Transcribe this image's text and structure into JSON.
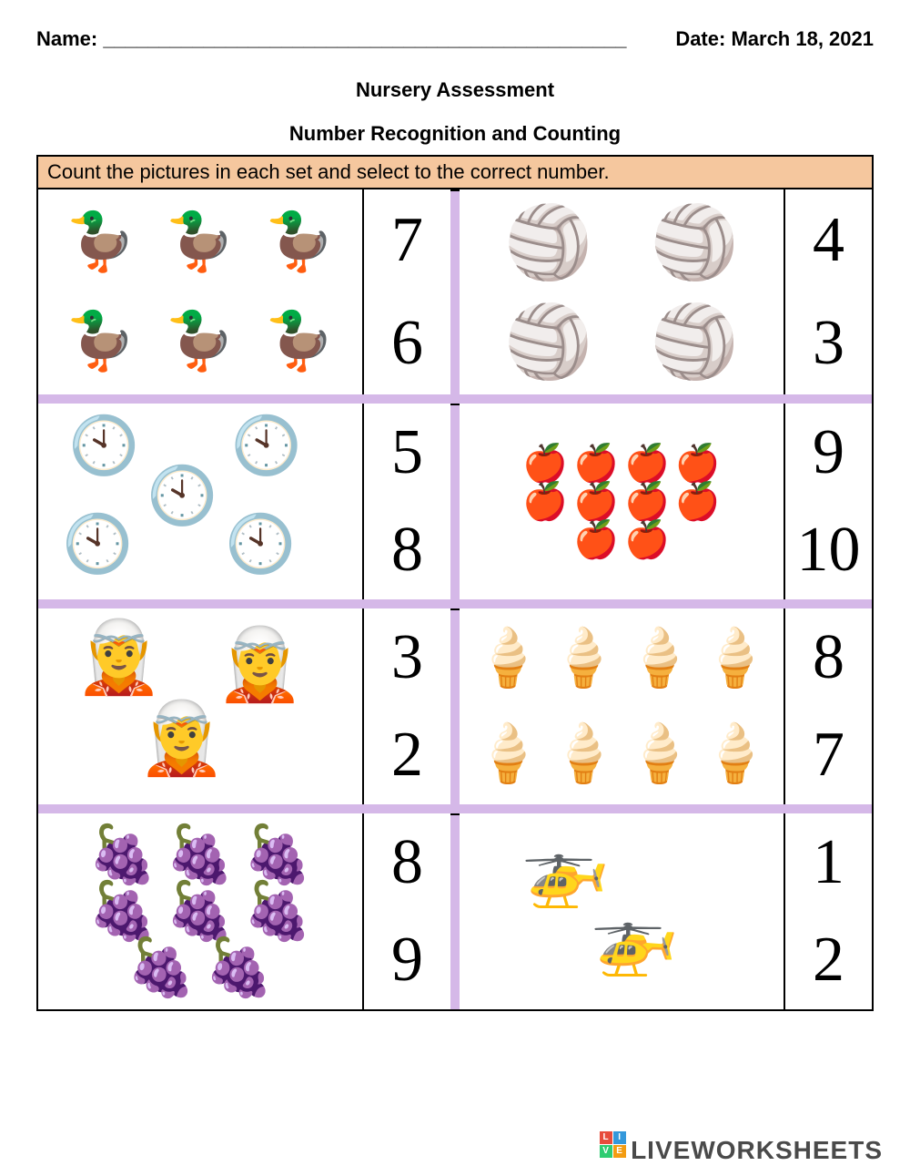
{
  "header": {
    "name_label": "Name:",
    "name_blank": "_______________________________________________",
    "date_label": "Date:",
    "date_value": "March 18, 2021"
  },
  "title": "Nursery Assessment",
  "subtitle": "Number Recognition and Counting",
  "instruction": "Count the pictures in each set and select to the correct number.",
  "colors": {
    "instruction_bg": "#f5c79e",
    "row_divider": "#d5b8e8",
    "border": "#000000",
    "background": "#ffffff",
    "watermark_text": "#4a4a4a"
  },
  "questions": [
    {
      "id": "ducks",
      "icon": "🦆",
      "count": 6,
      "size": "big",
      "layout": "3x2",
      "choices": [
        "7",
        "6"
      ]
    },
    {
      "id": "beachballs",
      "icon": "🏐",
      "count": 4,
      "size": "huge",
      "layout": "2x2",
      "choices": [
        "4",
        "3"
      ]
    },
    {
      "id": "clocks",
      "icon": "🕙",
      "count": 5,
      "size": "big",
      "layout": "scatter5",
      "choices": [
        "5",
        "8"
      ]
    },
    {
      "id": "apples",
      "icon": "🍎",
      "count": 10,
      "size": "sm",
      "layout": "tri10",
      "choices": [
        "9",
        "10"
      ]
    },
    {
      "id": "elves",
      "icon": "🧝",
      "count": 3,
      "size": "huge",
      "layout": "tri3",
      "choices": [
        "3",
        "2"
      ]
    },
    {
      "id": "icecream",
      "icon": "🍦",
      "count": 8,
      "size": "big",
      "layout": "4x2",
      "choices": [
        "8",
        "7"
      ]
    },
    {
      "id": "grapes",
      "icon": "🍇",
      "count": 8,
      "size": "big",
      "layout": "grapes8",
      "choices": [
        "8",
        "9"
      ]
    },
    {
      "id": "helicopters",
      "icon": "🚁",
      "count": 2,
      "size": "huge",
      "layout": "diag2",
      "choices": [
        "1",
        "2"
      ]
    }
  ],
  "watermark": "LIVEWORKSHEETS"
}
